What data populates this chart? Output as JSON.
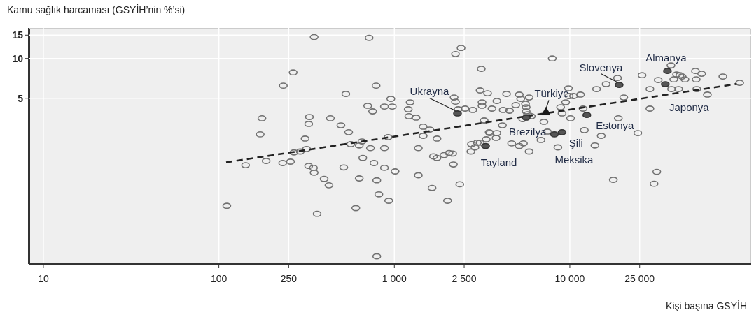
{
  "chart_data": {
    "type": "scatter",
    "ylabel": "Kamu sağlık harcaması  (GSYİH’nin %’si)",
    "xlabel": "Kişi başına GSYİH",
    "log": "xy",
    "grid": true,
    "xlim": [
      8.25,
      108000
    ],
    "ylim": [
      0.28,
      17
    ],
    "xticks": [
      10,
      100,
      250,
      {
        "value": 1000,
        "label": "1 000"
      },
      {
        "value": 2500,
        "label": "2 500"
      },
      {
        "value": 10000,
        "label": "10 000"
      },
      {
        "value": 25000,
        "label": "25 000"
      }
    ],
    "yticks": [
      5,
      10,
      15
    ],
    "series": [
      {
        "color": "#707070",
        "marker": "circle",
        "x": [
          111,
          142,
          176,
          172,
          186,
          233,
          231,
          256,
          265,
          349,
          328,
          325,
          310,
          316,
          268,
          291,
          325,
          346,
          349,
          363,
          398,
          424,
          432,
          496,
          549,
          529,
          515,
          603,
          631,
          661,
          564,
          631,
          654,
          731,
          705,
          752,
          718,
          787,
          765,
          794,
          816,
          794,
          2400,
          2230,
          3130,
          3080,
          3400,
          3160,
          3160,
          2190,
          2230,
          2310,
          2530,
          2800,
          3250,
          3470,
          3340,
          2750,
          2970,
          2730,
          2050,
          2150,
          1920,
          1750,
          1670,
          2170,
          2360,
          2010,
          1640,
          1370,
          1370,
          1750,
          1460,
          1460,
          1590,
          1330,
          1210,
          1200,
          1230,
          955,
          878,
          973,
          921,
          878,
          878,
          1010,
          929,
          3600,
          3840,
          4360,
          5150,
          5250,
          5860,
          4920,
          5590,
          5640,
          4170,
          4530,
          5640,
          5750,
          5390,
          6030,
          7120,
          4130,
          3500,
          3840,
          3800,
          2880,
          3080,
          4660,
          5150,
          5440,
          5860,
          6850,
          7450,
          8550,
          7940,
          8860,
          9030,
          9820,
          9910,
          9470,
          10500,
          11500,
          10100,
          11900,
          12100,
          15100,
          13900,
          14200,
          16100,
          18700,
          20300,
          18900,
          24400,
          17700,
          25800,
          28600,
          28600,
          31300,
          30200,
          31900,
          37700,
          40600,
          42400,
          39100,
          45300,
          43600,
          38000,
          41700,
          52000,
          56400,
          52500,
          52900,
          60800,
          74500,
          92900
        ],
        "values": [
          0.77,
          1.56,
          3.53,
          2.67,
          1.68,
          6.23,
          1.62,
          1.66,
          7.84,
          14.5,
          3.61,
          3.2,
          2.48,
          2.07,
          1.95,
          1.98,
          1.54,
          1.49,
          1.37,
          0.67,
          1.23,
          1.1,
          3.53,
          3.12,
          2.77,
          5.39,
          1.5,
          0.74,
          1.24,
          1.77,
          2.25,
          2.2,
          2.36,
          2.1,
          4.39,
          3.98,
          14.3,
          6.23,
          1.62,
          1.2,
          0.94,
          0.32,
          12.0,
          10.8,
          8.34,
          5.73,
          5.45,
          4.66,
          4.39,
          5.07,
          4.71,
          4.13,
          4.18,
          4.08,
          3.4,
          2.77,
          2.45,
          2.25,
          2.31,
          1.98,
          1.93,
          1.91,
          1.86,
          1.77,
          1.82,
          1.58,
          1.12,
          0.84,
          1.05,
          1.31,
          2.1,
          2.48,
          2.6,
          3.05,
          2.9,
          3.57,
          3.66,
          4.13,
          4.66,
          4.95,
          4.33,
          4.33,
          2.54,
          2.1,
          1.49,
          1.4,
          0.84,
          4.18,
          4.77,
          5.39,
          5.33,
          4.95,
          5.07,
          4.44,
          4.55,
          4.28,
          4.08,
          4.03,
          3.98,
          3.79,
          3.48,
          3.66,
          3.32,
          3.12,
          2.73,
          2.73,
          2.51,
          2.13,
          2.31,
          2.28,
          2.18,
          2.28,
          1.98,
          2.42,
          2.8,
          2.13,
          10.0,
          4.28,
          3.84,
          5.94,
          5.2,
          4.66,
          5.2,
          5.33,
          3.53,
          4.18,
          2.87,
          2.6,
          2.2,
          5.87,
          6.39,
          7.12,
          5.07,
          3.53,
          2.73,
          1.21,
          7.47,
          5.87,
          4.18,
          1.39,
          1.13,
          6.87,
          8.85,
          7.56,
          7.47,
          6.95,
          6.95,
          7.3,
          5.87,
          5.87,
          8.04,
          7.66,
          6.95,
          5.87,
          5.33,
          7.3,
          6.54
        ]
      },
      {
        "type": "line",
        "color": "#222222",
        "line_style": "dashed",
        "x": [
          110,
          89500
        ],
        "values": [
          1.64,
          6.42
        ]
      },
      {
        "color": "#555555",
        "marker": "circle",
        "x": [
          2290,
          5640,
          3310,
          8170,
          9030,
          12500,
          19100,
          35000,
          36000
        ],
        "values": [
          3.84,
          3.57,
          2.18,
          2.67,
          2.77,
          3.74,
          6.31,
          6.39,
          8.04
        ]
      },
      {
        "color": "#1a1a1a",
        "marker": "triangle",
        "x": [
          7320
        ],
        "values": [
          3.98
        ]
      }
    ],
    "annotations": [
      {
        "text": "Ukrayna",
        "x": 2290,
        "y": 3.84
      },
      {
        "text": "Türkiye",
        "x": 7320,
        "y": 3.98
      },
      {
        "text": "Brezilya",
        "x": 5640,
        "y": 3.57
      },
      {
        "text": "Tayland",
        "x": 3310,
        "y": 2.18
      },
      {
        "text": "Şili",
        "x": 9030,
        "y": 2.77
      },
      {
        "text": "Meksika",
        "x": 8170,
        "y": 2.67
      },
      {
        "text": "Estonya",
        "x": 12500,
        "y": 3.74
      },
      {
        "text": "Slovenya",
        "x": 19100,
        "y": 6.31
      },
      {
        "text": "Almanya",
        "x": 36000,
        "y": 8.04
      },
      {
        "text": "Japonya",
        "x": 35000,
        "y": 6.39
      }
    ]
  }
}
